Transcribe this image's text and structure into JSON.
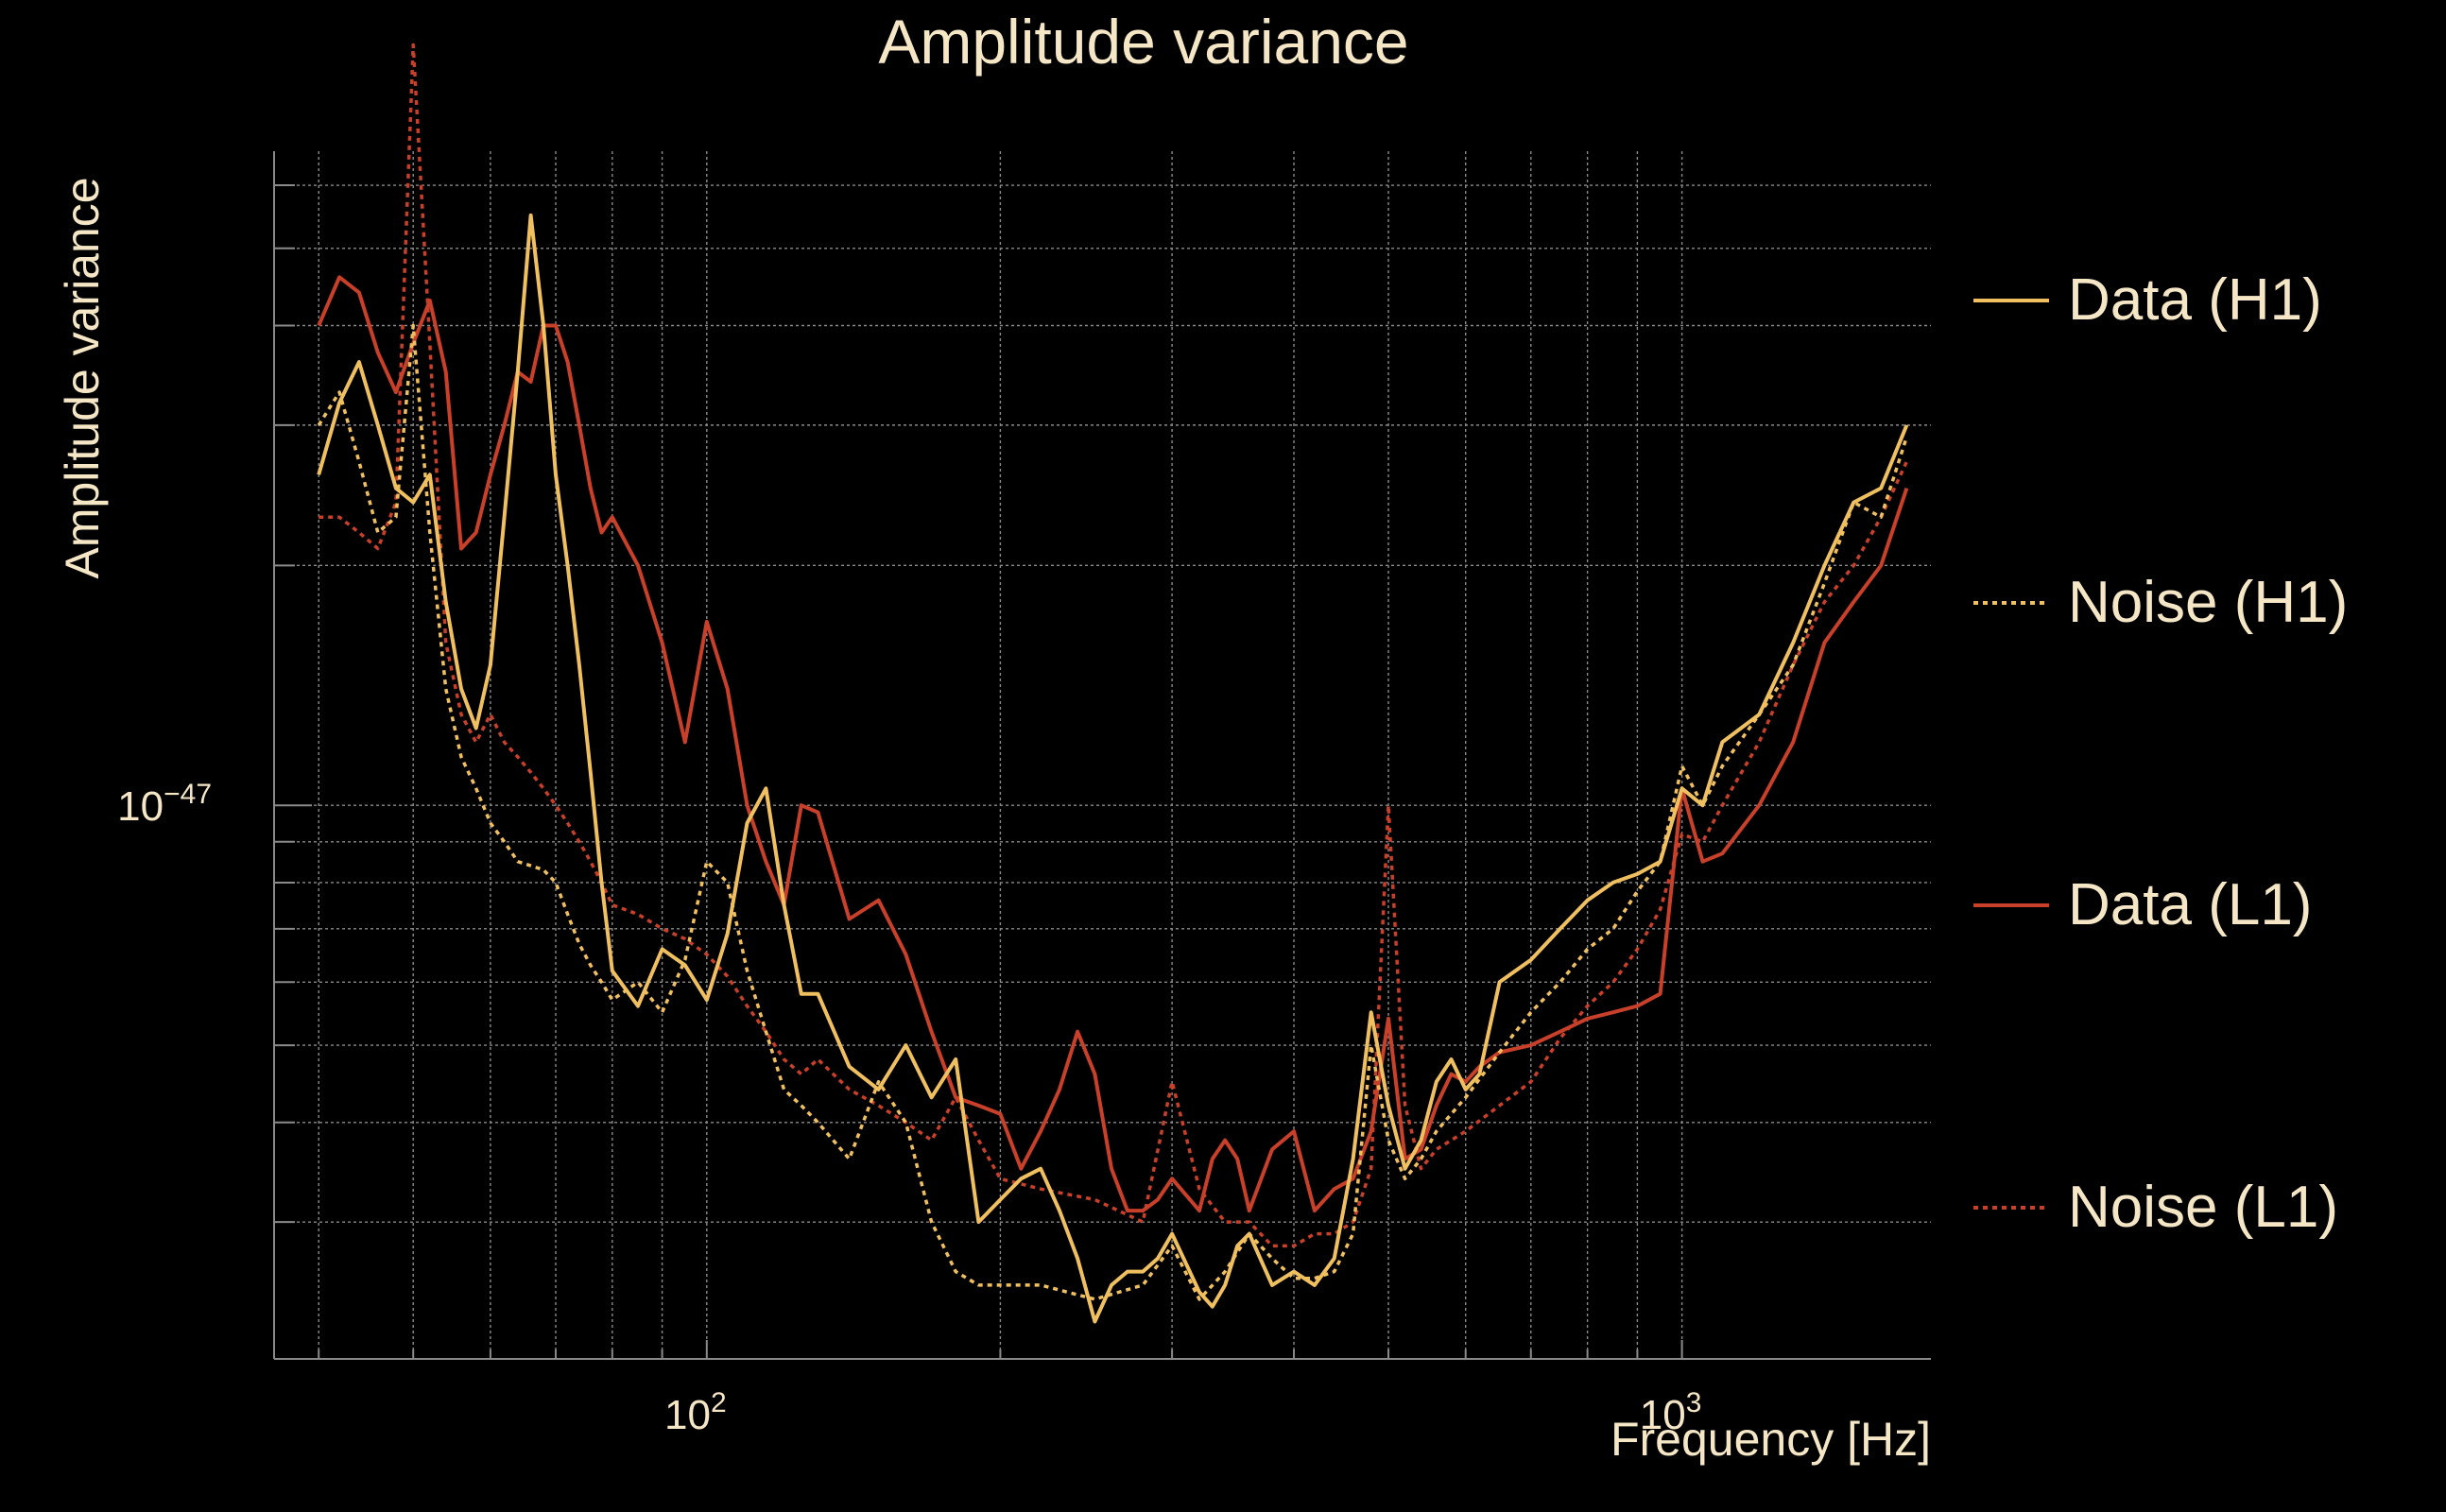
{
  "chart_data": {
    "type": "line",
    "title": "Amplitude variance",
    "xlabel": "Frequency [Hz]",
    "ylabel": "Amplitude variance",
    "xscale": "log",
    "yscale": "log",
    "xlim": [
      36,
      1800
    ],
    "ylim": [
      2.02e-48,
      6.62e-47
    ],
    "x_ticks": [
      {
        "value": 100,
        "base": "10",
        "exp": "2"
      },
      {
        "value": 1000,
        "base": "10",
        "exp": "3"
      }
    ],
    "y_ticks": [
      {
        "value": 1e-47,
        "base": "10",
        "exp": "−47"
      }
    ],
    "grid": true,
    "legend_position": "right",
    "colors": {
      "background": "#000000",
      "text": "#f5e6c6",
      "grid": "#8a8a8a",
      "axis": "#8a8a8a",
      "h1": "#f0c060",
      "l1": "#c8402a"
    },
    "series": [
      {
        "name": "Data (H1)",
        "style": "solid",
        "color": "#f0c060",
        "x": [
          40,
          42,
          44,
          46,
          48,
          50,
          52,
          54,
          56,
          58,
          60,
          62,
          64,
          66,
          68,
          70,
          72,
          74,
          76,
          78,
          80,
          85,
          90,
          95,
          100,
          105,
          110,
          115,
          120,
          125,
          130,
          140,
          150,
          160,
          170,
          180,
          190,
          200,
          210,
          220,
          230,
          240,
          250,
          260,
          270,
          280,
          290,
          300,
          320,
          330,
          340,
          350,
          360,
          380,
          400,
          420,
          440,
          460,
          480,
          500,
          520,
          540,
          560,
          580,
          600,
          620,
          650,
          700,
          750,
          800,
          850,
          900,
          950,
          1000,
          1050,
          1100,
          1200,
          1300,
          1400,
          1500,
          1600,
          1700
        ],
        "y": [
          2.6e-47,
          3.2e-47,
          3.6e-47,
          3e-47,
          2.5e-47,
          2.4e-47,
          2.6e-47,
          1.8e-47,
          1.4e-47,
          1.25e-47,
          1.5e-47,
          2.3e-47,
          3.5e-47,
          5.5e-47,
          4e-47,
          2.6e-47,
          2e-47,
          1.5e-47,
          1.1e-47,
          8e-48,
          6.2e-48,
          5.6e-48,
          6.6e-48,
          6.3e-48,
          5.7e-48,
          6.9e-48,
          9.5e-48,
          1.05e-47,
          7.5e-48,
          5.8e-48,
          5.8e-48,
          4.7e-48,
          4.4e-48,
          5e-48,
          4.3e-48,
          4.8e-48,
          3e-48,
          3.2e-48,
          3.4e-48,
          3.5e-48,
          3.1e-48,
          2.7e-48,
          2.25e-48,
          2.5e-48,
          2.6e-48,
          2.6e-48,
          2.7e-48,
          2.9e-48,
          2.45e-48,
          2.35e-48,
          2.5e-48,
          2.8e-48,
          2.9e-48,
          2.5e-48,
          2.6e-48,
          2.5e-48,
          2.7e-48,
          3.6e-48,
          5.5e-48,
          4.2e-48,
          3.5e-48,
          3.8e-48,
          4.5e-48,
          4.8e-48,
          4.4e-48,
          4.6e-48,
          6e-48,
          6.4e-48,
          7e-48,
          7.6e-48,
          8e-48,
          8.2e-48,
          8.5e-48,
          1.05e-47,
          1e-47,
          1.2e-47,
          1.3e-47,
          1.6e-47,
          2e-47,
          2.4e-47,
          2.5e-47,
          3e-47
        ]
      },
      {
        "name": "Noise (H1)",
        "style": "dotted",
        "color": "#f0c060",
        "x": [
          40,
          42,
          44,
          46,
          48,
          50,
          52,
          54,
          56,
          58,
          60,
          62,
          64,
          66,
          68,
          70,
          72,
          74,
          76,
          78,
          80,
          85,
          90,
          95,
          100,
          105,
          110,
          115,
          120,
          125,
          130,
          140,
          150,
          160,
          170,
          180,
          190,
          200,
          220,
          250,
          280,
          300,
          320,
          340,
          360,
          380,
          400,
          420,
          440,
          460,
          480,
          500,
          520,
          540,
          560,
          600,
          650,
          700,
          750,
          800,
          850,
          900,
          950,
          1000,
          1050,
          1100,
          1200,
          1300,
          1400,
          1500,
          1600,
          1700
        ],
        "y": [
          3e-47,
          3.3e-47,
          2.7e-47,
          2.2e-47,
          2.3e-47,
          4e-47,
          2.2e-47,
          1.4e-47,
          1.15e-47,
          1.05e-47,
          9.5e-48,
          9e-48,
          8.5e-48,
          8.4e-48,
          8.3e-48,
          8e-48,
          7.3e-48,
          6.7e-48,
          6.3e-48,
          6e-48,
          5.7e-48,
          6e-48,
          5.5e-48,
          6.4e-48,
          8.5e-48,
          8e-48,
          6.2e-48,
          5.2e-48,
          4.4e-48,
          4.2e-48,
          4e-48,
          3.6e-48,
          4.5e-48,
          4e-48,
          3e-48,
          2.6e-48,
          2.5e-48,
          2.5e-48,
          2.5e-48,
          2.4e-48,
          2.5e-48,
          2.8e-48,
          2.4e-48,
          2.6e-48,
          2.9e-48,
          2.7e-48,
          2.55e-48,
          2.55e-48,
          2.6e-48,
          2.9e-48,
          5e-48,
          3.8e-48,
          3.4e-48,
          3.6e-48,
          3.9e-48,
          4.3e-48,
          4.9e-48,
          5.5e-48,
          6e-48,
          6.6e-48,
          7e-48,
          7.8e-48,
          8.5e-48,
          1.12e-47,
          1e-47,
          1.12e-47,
          1.3e-47,
          1.5e-47,
          1.9e-47,
          2.4e-47,
          2.3e-47,
          2.9e-47
        ]
      },
      {
        "name": "Data (L1)",
        "style": "solid",
        "color": "#c8402a",
        "x": [
          40,
          42,
          44,
          46,
          48,
          50,
          52,
          54,
          56,
          58,
          60,
          62,
          64,
          66,
          68,
          70,
          72,
          74,
          76,
          78,
          80,
          85,
          90,
          95,
          100,
          105,
          110,
          115,
          120,
          125,
          130,
          140,
          150,
          160,
          170,
          180,
          190,
          200,
          210,
          220,
          230,
          240,
          250,
          260,
          270,
          280,
          290,
          300,
          320,
          330,
          340,
          350,
          360,
          380,
          400,
          420,
          440,
          460,
          480,
          500,
          520,
          540,
          560,
          580,
          600,
          620,
          650,
          700,
          750,
          800,
          850,
          900,
          950,
          1000,
          1050,
          1100,
          1200,
          1300,
          1400,
          1500,
          1600,
          1700
        ],
        "y": [
          4e-47,
          4.6e-47,
          4.4e-47,
          3.7e-47,
          3.3e-47,
          3.8e-47,
          4.3e-47,
          3.5e-47,
          2.1e-47,
          2.2e-47,
          2.6e-47,
          3e-47,
          3.5e-47,
          3.4e-47,
          4e-47,
          4e-47,
          3.6e-47,
          3e-47,
          2.5e-47,
          2.2e-47,
          2.3e-47,
          2e-47,
          1.6e-47,
          1.2e-47,
          1.7e-47,
          1.4e-47,
          1e-47,
          8.5e-48,
          7.5e-48,
          1e-47,
          9.8e-48,
          7.2e-48,
          7.6e-48,
          6.5e-48,
          5.2e-48,
          4.3e-48,
          4.2e-48,
          4.1e-48,
          3.5e-48,
          3.9e-48,
          4.4e-48,
          5.2e-48,
          4.6e-48,
          3.5e-48,
          3.1e-48,
          3.1e-48,
          3.2e-48,
          3.4e-48,
          3.1e-48,
          3.6e-48,
          3.8e-48,
          3.6e-48,
          3.1e-48,
          3.7e-48,
          3.9e-48,
          3.1e-48,
          3.3e-48,
          3.4e-48,
          3.9e-48,
          5.4e-48,
          3.6e-48,
          3.7e-48,
          4.2e-48,
          4.6e-48,
          4.5e-48,
          4.7e-48,
          4.9e-48,
          5e-48,
          5.2e-48,
          5.4e-48,
          5.5e-48,
          5.6e-48,
          5.8e-48,
          1.05e-47,
          8.5e-48,
          8.7e-48,
          1e-47,
          1.2e-47,
          1.6e-47,
          1.8e-47,
          2e-47,
          2.5e-47
        ]
      },
      {
        "name": "Noise (L1)",
        "style": "dotted",
        "color": "#c8402a",
        "x": [
          40,
          42,
          44,
          46,
          48,
          50,
          52,
          54,
          56,
          58,
          60,
          62,
          64,
          66,
          68,
          70,
          72,
          74,
          76,
          78,
          80,
          85,
          90,
          95,
          100,
          105,
          110,
          115,
          120,
          125,
          130,
          140,
          150,
          160,
          170,
          180,
          190,
          200,
          220,
          250,
          280,
          300,
          320,
          340,
          360,
          380,
          400,
          420,
          440,
          460,
          480,
          500,
          520,
          540,
          560,
          600,
          650,
          700,
          750,
          800,
          850,
          900,
          950,
          1000,
          1050,
          1100,
          1200,
          1300,
          1400,
          1500,
          1600,
          1700
        ],
        "y": [
          2.3e-47,
          2.3e-47,
          2.2e-47,
          2.1e-47,
          2.4e-47,
          9e-47,
          3.8e-47,
          1.6e-47,
          1.3e-47,
          1.2e-47,
          1.3e-47,
          1.2e-47,
          1.15e-47,
          1.1e-47,
          1.05e-47,
          1e-47,
          9.5e-48,
          9e-48,
          8.5e-48,
          8e-48,
          7.5e-48,
          7.3e-48,
          7e-48,
          6.8e-48,
          6.5e-48,
          6.1e-48,
          5.6e-48,
          5.2e-48,
          4.8e-48,
          4.6e-48,
          4.8e-48,
          4.4e-48,
          4.2e-48,
          4e-48,
          3.8e-48,
          4.3e-48,
          3.8e-48,
          3.4e-48,
          3.3e-48,
          3.2e-48,
          3e-48,
          4.5e-48,
          3.3e-48,
          3e-48,
          3e-48,
          2.8e-48,
          2.8e-48,
          2.9e-48,
          2.9e-48,
          3e-48,
          3.5e-48,
          1e-47,
          4.2e-48,
          3.5e-48,
          3.7e-48,
          3.9e-48,
          4.2e-48,
          4.5e-48,
          5.1e-48,
          5.6e-48,
          6e-48,
          6.6e-48,
          7.4e-48,
          9.2e-48,
          9e-48,
          1e-47,
          1.2e-47,
          1.5e-47,
          1.8e-47,
          2e-47,
          2.3e-47,
          2.7e-47
        ]
      }
    ]
  }
}
